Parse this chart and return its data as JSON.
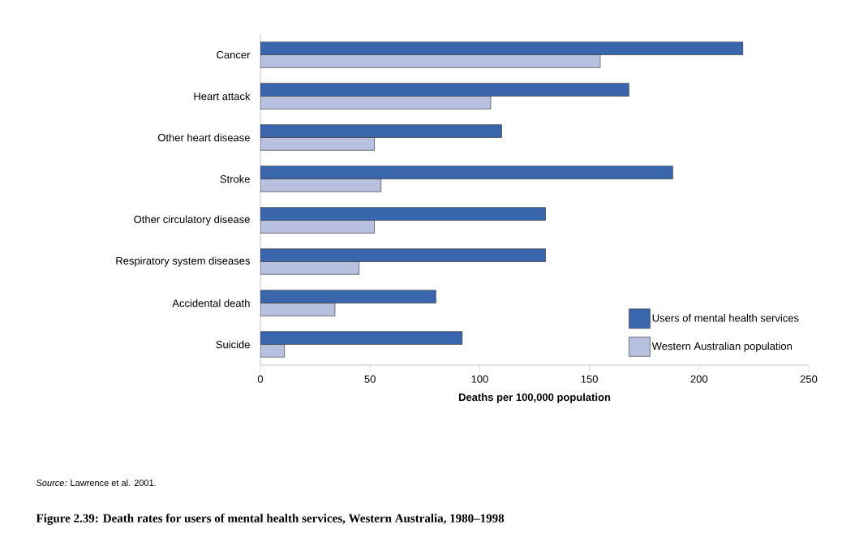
{
  "chart_data": {
    "type": "bar",
    "orientation": "horizontal",
    "title": "Figure 2.39: Death rates for users of mental health services, Western Australia, 1980–1998",
    "xlabel": "Deaths per 100,000 population",
    "annotations": [
      "*Source:* Lawrence et al. 2001."
    ],
    "categories": [
      "Cancer",
      "Heart attack",
      "Other heart disease",
      "Stroke",
      "Other circulatory disease",
      "Respiratory system diseases",
      "Accidental death",
      "Suicide"
    ],
    "series": [
      {
        "name": "Users of mental health services",
        "color": "#3a66ad",
        "values": [
          220,
          168,
          110,
          188,
          130,
          130,
          80,
          92
        ]
      },
      {
        "name": "Western Australian population",
        "color": "#b8c0e0",
        "values": [
          155,
          105,
          52,
          55,
          52,
          45,
          34,
          11
        ]
      }
    ],
    "xlim": [
      0,
      250
    ],
    "xticks": [
      0,
      50,
      100,
      150,
      200,
      250
    ],
    "legend": "bottom right",
    "grid": false
  }
}
